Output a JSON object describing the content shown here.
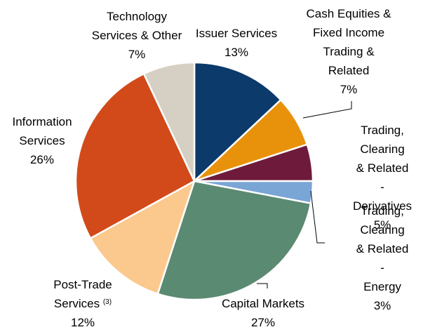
{
  "chart_data": {
    "type": "pie",
    "categories": [
      "Issuer Services",
      "Cash Equities &\nFixed Income\nTrading &\nRelated",
      "Trading, Clearing\n& Related -\nDerivatives",
      "Trading, Clearing\n& Related -\nEnergy",
      "Capital Markets",
      "Post-Trade\nServices",
      "Information\nServices",
      "Technology\nServices & Other"
    ],
    "label_notes": [
      null,
      null,
      null,
      null,
      null,
      "(3)",
      null,
      null
    ],
    "values": [
      13,
      7,
      5,
      3,
      27,
      12,
      26,
      7
    ],
    "value_labels": [
      "13%",
      "7%",
      "5%",
      "3%",
      "27%",
      "12%",
      "26%",
      "7%"
    ],
    "colors": [
      "#0b3a6b",
      "#e8920c",
      "#6e1a3a",
      "#7aa6d6",
      "#5b8a72",
      "#fbc98e",
      "#d24a1a",
      "#d5cfc4"
    ]
  }
}
